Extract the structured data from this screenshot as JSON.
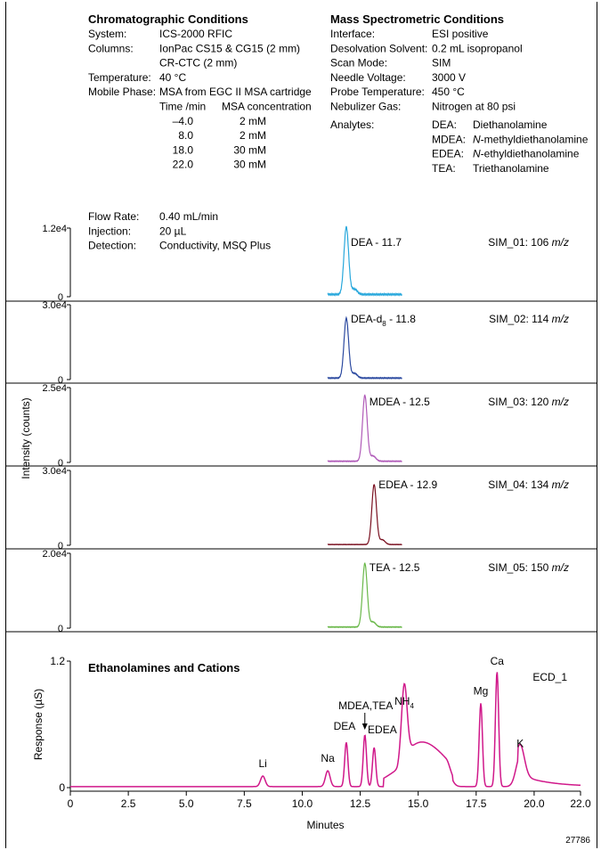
{
  "conditions": {
    "chromatographic": {
      "title": "Chromatographic Conditions",
      "rows": [
        {
          "label": "System:",
          "value": "ICS-2000 RFIC"
        },
        {
          "label": "Columns:",
          "value": "IonPac CS15 & CG15 (2 mm)"
        },
        {
          "label": "",
          "value": "CR-CTC (2 mm)"
        },
        {
          "label": "Temperature:",
          "value": "40 °C"
        },
        {
          "label": "Mobile Phase:",
          "value": "MSA from EGC II MSA cartridge"
        }
      ],
      "gradient": {
        "header_time": "Time /min",
        "header_conc": "MSA concentration",
        "rows": [
          {
            "time": "–4.0",
            "conc": "2 mM"
          },
          {
            "time": "8.0",
            "conc": "2 mM"
          },
          {
            "time": "18.0",
            "conc": "30 mM"
          },
          {
            "time": "22.0",
            "conc": "30 mM"
          }
        ]
      },
      "rows_after": [
        {
          "label": "Flow Rate:",
          "value": "0.40 mL/min"
        },
        {
          "label": "Injection:",
          "value": "20 µL"
        },
        {
          "label": "Detection:",
          "value": "Conductivity, MSQ Plus"
        }
      ]
    },
    "mass_spec": {
      "title": "Mass Spectrometric Conditions",
      "rows": [
        {
          "label": "Interface:",
          "value": "ESI positive"
        },
        {
          "label": "Desolvation Solvent:",
          "value": "0.2 mL isopropanol"
        },
        {
          "label": "Scan Mode:",
          "value": "SIM"
        },
        {
          "label": "Needle Voltage:",
          "value": "3000 V"
        },
        {
          "label": "Probe Temperature:",
          "value": "450 °C"
        },
        {
          "label": "Nebulizer Gas:",
          "value": "Nitrogen at 80 psi"
        }
      ],
      "analytes_label": "Analytes:",
      "analytes": [
        {
          "abbr": "DEA:",
          "prefix": "",
          "italic": "",
          "name": "Diethanolamine"
        },
        {
          "abbr": "MDEA:",
          "prefix": "",
          "italic": "N",
          "name": "-methyldiethanolamine"
        },
        {
          "abbr": "EDEA:",
          "prefix": "",
          "italic": "N",
          "name": "-ethyldiethanolamine"
        },
        {
          "abbr": "TEA:",
          "prefix": "",
          "italic": "",
          "name": "Triethanolamine"
        }
      ]
    }
  },
  "figure_id": "27786",
  "colors": {
    "sim_01": "#29a8dc",
    "sim_02": "#2c4aa0",
    "sim_03": "#b05ab8",
    "sim_04": "#7a1020",
    "sim_05": "#6ab84a",
    "ecd_1": "#d0188a"
  },
  "chart_data": [
    {
      "type": "line",
      "channel": "SIM_01: 106",
      "unit": "m/z",
      "y_tick_top": "1.2e4",
      "y_tick_zero": "0",
      "ylim": [
        0,
        12000
      ],
      "xlim": [
        0,
        22
      ],
      "peak_label": "DEA - 11.7",
      "peak": {
        "x": 11.9,
        "y": 11800,
        "width": 0.1
      },
      "trace_range": [
        11.1,
        14.3
      ],
      "baseline": 400
    },
    {
      "type": "line",
      "channel": "SIM_02: 114",
      "unit": "m/z",
      "y_tick_top": "3.0e4",
      "y_tick_zero": "0",
      "ylim": [
        0,
        30000
      ],
      "xlim": [
        0,
        22
      ],
      "peak_label_main": "DEA-d",
      "peak_label_sub": "8",
      "peak_label_tail": " - 11.8",
      "peak": {
        "x": 11.9,
        "y": 24000,
        "width": 0.1
      },
      "trace_range": [
        11.1,
        14.3
      ],
      "baseline": 600
    },
    {
      "type": "line",
      "channel": "SIM_03: 120",
      "unit": "m/z",
      "y_tick_top": "2.5e4",
      "y_tick_zero": "0",
      "ylim": [
        0,
        25000
      ],
      "xlim": [
        0,
        22
      ],
      "peak_label": "MDEA - 12.5",
      "peak": {
        "x": 12.7,
        "y": 22000,
        "width": 0.1
      },
      "trace_range": [
        11.1,
        14.3
      ],
      "baseline": 400
    },
    {
      "type": "line",
      "channel": "SIM_04: 134",
      "unit": "m/z",
      "y_tick_top": "3.0e4",
      "y_tick_zero": "0",
      "ylim": [
        0,
        30000
      ],
      "xlim": [
        0,
        22
      ],
      "peak_label": "EDEA - 12.9",
      "peak": {
        "x": 13.1,
        "y": 24000,
        "width": 0.1
      },
      "trace_range": [
        11.1,
        14.3
      ],
      "baseline": 300
    },
    {
      "type": "line",
      "channel": "SIM_05: 150",
      "unit": "m/z",
      "y_tick_top": "2.0e4",
      "y_tick_zero": "0",
      "ylim": [
        0,
        20000
      ],
      "xlim": [
        0,
        22
      ],
      "peak_label": "TEA - 12.5",
      "peak": {
        "x": 12.7,
        "y": 17000,
        "width": 0.1
      },
      "trace_range": [
        11.1,
        14.3
      ],
      "baseline": 300
    },
    {
      "type": "line",
      "title": "Ethanolamines and Cations",
      "channel": "ECD_1",
      "ylabel": "Response (µS)",
      "xlabel": "Minutes",
      "ylim": [
        0,
        1.2
      ],
      "y_ticks": [
        "0",
        "1.2"
      ],
      "xlim": [
        0,
        22
      ],
      "x_ticks": [
        "0",
        "2.5",
        "5.0",
        "7.5",
        "10.0",
        "12.5",
        "15.0",
        "17.5",
        "20.0",
        "22.0"
      ],
      "x_tick_values": [
        0,
        2.5,
        5,
        7.5,
        10,
        12.5,
        15,
        17.5,
        20,
        22
      ],
      "peaks": [
        {
          "label": "Li",
          "x": 8.3,
          "y": 0.11
        },
        {
          "label": "Na",
          "x": 11.1,
          "y": 0.16
        },
        {
          "label": "DEA",
          "x": 11.9,
          "y": 0.43
        },
        {
          "label": "MDEA,TEA",
          "x": 12.7,
          "y": 0.5
        },
        {
          "label": "EDEA",
          "x": 13.1,
          "y": 0.38
        },
        {
          "label": "NH",
          "sub": "4",
          "x": 14.4,
          "y": 0.7
        },
        {
          "label": "Mg",
          "x": 17.7,
          "y": 0.8
        },
        {
          "label": "Ca",
          "x": 18.4,
          "y": 1.1
        },
        {
          "label": "K",
          "x": 19.4,
          "y": 0.3
        }
      ]
    }
  ],
  "shared_ylabel": "Intensity (counts)"
}
